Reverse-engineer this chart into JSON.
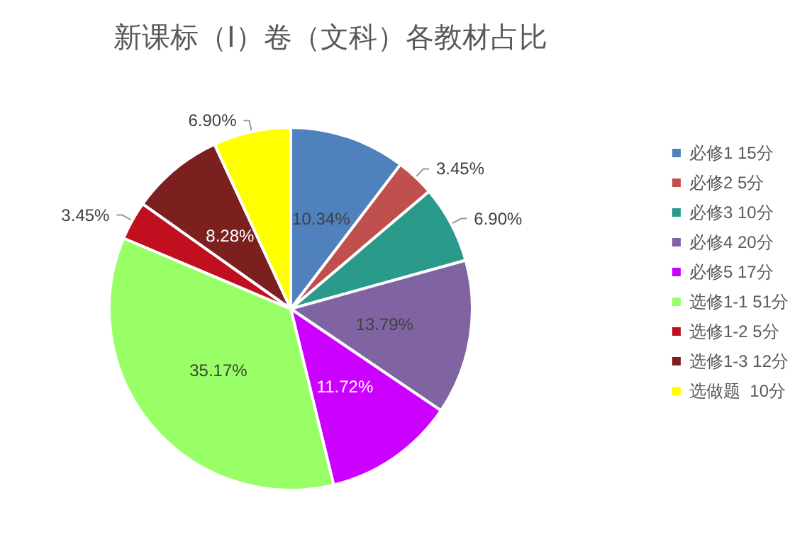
{
  "chart_data": {
    "type": "pie",
    "title": "新课标（Ⅰ）卷（文科）各教材占比",
    "categories": [
      "必修1 15分",
      "必修2 5分",
      "必修3 10分",
      "必修4 20分",
      "必修5 17分",
      "选修1-1 51分",
      "选修1-2 5分",
      "选修1-3 12分",
      "选做题  10分"
    ],
    "values": [
      10.34,
      3.45,
      6.9,
      13.79,
      11.72,
      35.17,
      3.45,
      8.28,
      6.9
    ],
    "value_labels": [
      "10.34%",
      "3.45%",
      "6.90%",
      "13.79%",
      "11.72%",
      "35.17%",
      "3.45%",
      "8.28%",
      "6.90%"
    ],
    "colors": [
      "#4f81bd",
      "#c0504d",
      "#2a9a8a",
      "#8064a2",
      "#cc00ff",
      "#99ff66",
      "#c0101f",
      "#7b1f1f",
      "#ffff00"
    ],
    "legend": "right"
  }
}
